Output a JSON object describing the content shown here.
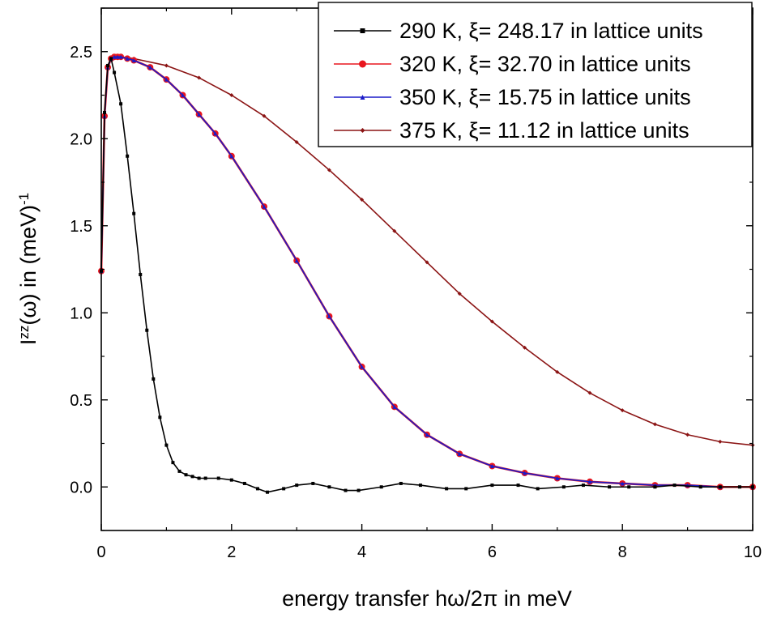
{
  "chart_data": {
    "type": "line",
    "title": "",
    "xlabel": "energy transfer hω/2π in meV",
    "ylabel_main": "I",
    "ylabel_sup": "zz",
    "ylabel_rest": "(ω)  in (meV)",
    "ylabel_sup2": "-1",
    "xlim": [
      0,
      10
    ],
    "ylim": [
      -0.25,
      2.75
    ],
    "xticks": [
      0,
      2,
      4,
      6,
      8,
      10
    ],
    "xtick_labels": [
      "0",
      "2",
      "4",
      "6",
      "8",
      "10"
    ],
    "yticks": [
      0.0,
      0.5,
      1.0,
      1.5,
      2.0,
      2.5
    ],
    "ytick_labels": [
      "0.0",
      "0.5",
      "1.0",
      "1.5",
      "2.0",
      "2.5"
    ],
    "grid": false,
    "legend_position": "top-right",
    "series": [
      {
        "name": "290 K, ξ= 248.17 in lattice units",
        "color": "#000000",
        "marker": "square",
        "x": [
          0.0,
          0.05,
          0.1,
          0.15,
          0.2,
          0.3,
          0.4,
          0.5,
          0.6,
          0.7,
          0.8,
          0.9,
          1.0,
          1.1,
          1.2,
          1.3,
          1.4,
          1.5,
          1.6,
          1.8,
          2.0,
          2.2,
          2.4,
          2.55,
          2.8,
          3.0,
          3.25,
          3.5,
          3.75,
          3.95,
          4.3,
          4.6,
          4.9,
          5.3,
          5.6,
          6.0,
          6.4,
          6.7,
          7.1,
          7.4,
          7.8,
          8.1,
          8.5,
          8.8,
          9.2,
          9.5,
          9.8,
          10.0
        ],
        "y": [
          1.24,
          2.15,
          2.42,
          2.46,
          2.38,
          2.2,
          1.9,
          1.57,
          1.22,
          0.9,
          0.62,
          0.4,
          0.24,
          0.14,
          0.09,
          0.07,
          0.06,
          0.05,
          0.05,
          0.05,
          0.04,
          0.02,
          -0.01,
          -0.03,
          -0.01,
          0.01,
          0.02,
          0.0,
          -0.02,
          -0.02,
          0.0,
          0.02,
          0.01,
          -0.01,
          -0.01,
          0.01,
          0.01,
          -0.01,
          0.0,
          0.01,
          0.0,
          0.0,
          0.0,
          0.01,
          0.0,
          0.0,
          0.0,
          0.0
        ]
      },
      {
        "name": "320 K, ξ= 32.70 in lattice units",
        "color": "#e8161e",
        "marker": "circle",
        "x": [
          0.0,
          0.05,
          0.1,
          0.15,
          0.2,
          0.25,
          0.3,
          0.4,
          0.5,
          0.75,
          1.0,
          1.25,
          1.5,
          1.75,
          2.0,
          2.5,
          3.0,
          3.5,
          4.0,
          4.5,
          5.0,
          5.5,
          6.0,
          6.5,
          7.0,
          7.5,
          8.0,
          8.5,
          9.0,
          9.5,
          10.0
        ],
        "y": [
          1.24,
          2.13,
          2.41,
          2.46,
          2.47,
          2.47,
          2.47,
          2.46,
          2.45,
          2.41,
          2.34,
          2.25,
          2.14,
          2.03,
          1.9,
          1.61,
          1.3,
          0.98,
          0.69,
          0.46,
          0.3,
          0.19,
          0.12,
          0.08,
          0.05,
          0.03,
          0.02,
          0.01,
          0.01,
          0.0,
          0.0
        ]
      },
      {
        "name": "350 K, ξ= 15.75 in lattice units",
        "color": "#1b1bc8",
        "marker": "triangle",
        "x": [
          0.0,
          0.05,
          0.1,
          0.15,
          0.2,
          0.25,
          0.3,
          0.4,
          0.5,
          0.75,
          1.0,
          1.25,
          1.5,
          1.75,
          2.0,
          2.5,
          3.0,
          3.5,
          4.0,
          4.5,
          5.0,
          5.5,
          6.0,
          6.5,
          7.0,
          7.5,
          8.0,
          8.5,
          9.0,
          9.5,
          10.0
        ],
        "y": [
          1.24,
          2.13,
          2.41,
          2.46,
          2.47,
          2.47,
          2.47,
          2.46,
          2.45,
          2.41,
          2.34,
          2.25,
          2.14,
          2.03,
          1.9,
          1.61,
          1.3,
          0.98,
          0.69,
          0.46,
          0.3,
          0.19,
          0.12,
          0.08,
          0.05,
          0.03,
          0.02,
          0.01,
          0.01,
          0.0,
          0.0
        ]
      },
      {
        "name": "375 K, ξ= 11.12 in lattice units",
        "color": "#8b1414",
        "marker": "diamond",
        "x": [
          0.0,
          0.05,
          0.1,
          0.15,
          0.2,
          0.3,
          0.5,
          1.0,
          1.5,
          2.0,
          2.5,
          3.0,
          3.5,
          4.0,
          4.5,
          5.0,
          5.5,
          6.0,
          6.5,
          7.0,
          7.5,
          8.0,
          8.5,
          9.0,
          9.5,
          10.0
        ],
        "y": [
          1.24,
          2.13,
          2.41,
          2.46,
          2.47,
          2.47,
          2.46,
          2.42,
          2.35,
          2.25,
          2.13,
          1.98,
          1.82,
          1.65,
          1.47,
          1.29,
          1.11,
          0.95,
          0.8,
          0.66,
          0.54,
          0.44,
          0.36,
          0.3,
          0.26,
          0.24
        ]
      }
    ]
  }
}
